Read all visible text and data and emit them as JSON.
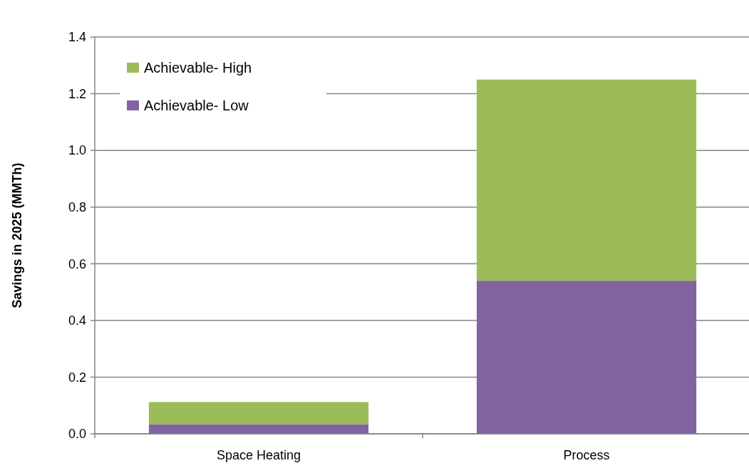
{
  "chart_data": {
    "type": "bar",
    "stacked": true,
    "ylabel": "Savings in  2025 (MMTh)",
    "categories": [
      "Space Heating",
      "Process"
    ],
    "series": [
      {
        "name": "Achievable- Low",
        "color": "#8064a2",
        "values": [
          0.034,
          0.54
        ]
      },
      {
        "name": "Achievable- High",
        "color": "#9bbb59",
        "values": [
          0.078,
          0.71
        ]
      }
    ],
    "ylim": [
      0,
      1.4
    ],
    "yticks": [
      {
        "value": 0,
        "label": "0.0"
      },
      {
        "value": 0.2,
        "label": "0.2"
      },
      {
        "value": 0.4,
        "label": "0.4"
      },
      {
        "value": 0.6,
        "label": "0.6"
      },
      {
        "value": 0.8,
        "label": "0.8"
      },
      {
        "value": 1,
        "label": "1.0"
      },
      {
        "value": 1.2,
        "label": "1.2"
      },
      {
        "value": 1.4,
        "label": "1.4"
      }
    ],
    "grid": "y",
    "legend": "top left"
  }
}
